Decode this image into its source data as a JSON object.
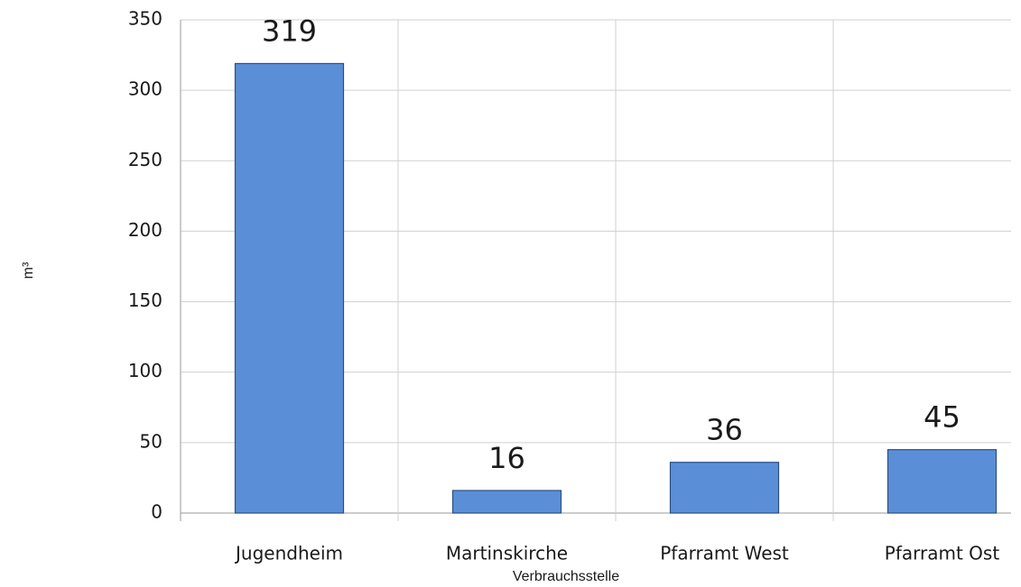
{
  "chart_data": {
    "type": "bar",
    "categories": [
      "Jugendheim",
      "Martinskirche",
      "Pfarramt West",
      "Pfarramt Ost"
    ],
    "values": [
      319,
      16,
      36,
      45
    ],
    "color": "#5a8fd8",
    "x_label": "Verbrauchsstelle",
    "y_label": "m³",
    "ylim": [
      0,
      350
    ],
    "yticks": [
      0,
      50,
      100,
      150,
      200,
      250,
      300,
      350
    ],
    "grid": true
  }
}
